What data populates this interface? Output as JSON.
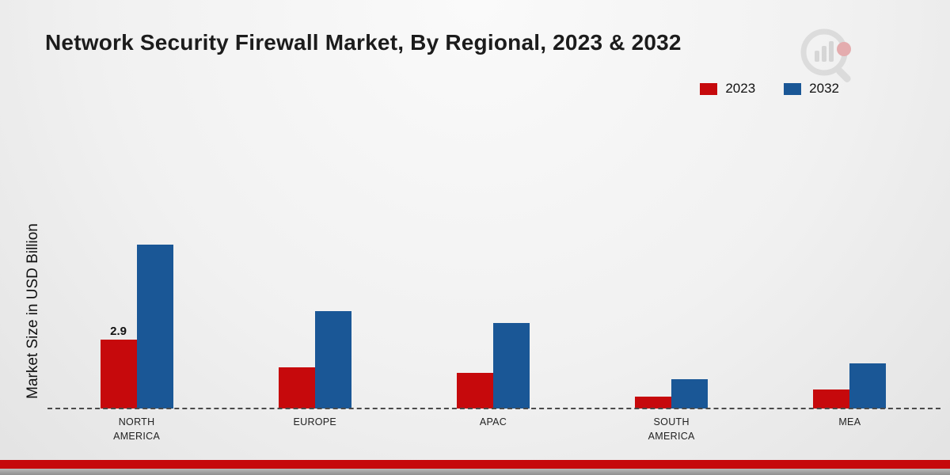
{
  "title": "Network Security Firewall Market, By Regional, 2023 & 2032",
  "y_axis_label": "Market Size in USD Billion",
  "footer": {
    "accent_color": "#c6090c"
  },
  "chart_data": {
    "type": "bar",
    "title": "Network Security Firewall Market, By Regional, 2023 & 2032",
    "xlabel": "",
    "ylabel": "Market Size in USD Billion",
    "ylim": [
      0,
      7
    ],
    "grid": false,
    "legend_position": "top-right",
    "categories": [
      "NORTH\nAMERICA",
      "EUROPE",
      "APAC",
      "SOUTH\nAMERICA",
      "MEA"
    ],
    "series": [
      {
        "name": "2023",
        "color": "#c6090c",
        "values": [
          2.9,
          1.75,
          1.5,
          0.5,
          0.8
        ]
      },
      {
        "name": "2032",
        "color": "#1a5796",
        "values": [
          6.9,
          4.1,
          3.6,
          1.25,
          1.9
        ]
      }
    ],
    "annotations": [
      {
        "category_index": 0,
        "series_index": 0,
        "text": "2.9"
      }
    ]
  }
}
